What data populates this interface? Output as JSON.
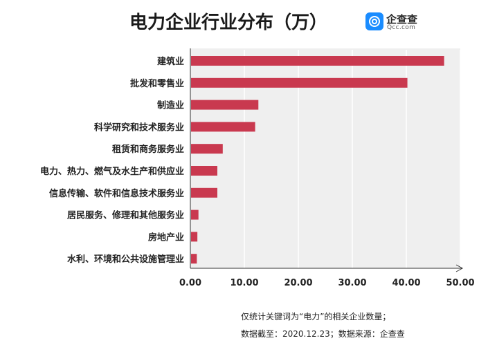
{
  "title": "电力企业行业分布（万）",
  "logo": {
    "name": "企查查",
    "sub": "Qcc.com"
  },
  "chart_data": {
    "type": "bar",
    "orientation": "horizontal",
    "title": "电力企业行业分布（万）",
    "categories": [
      "建筑业",
      "批发和零售业",
      "制造业",
      "科学研究和技术服务业",
      "租赁和商务服务业",
      "电力、热力、燃气及水生产和供应业",
      "信息传输、软件和信息技术服务业",
      "居民服务、修理和其他服务业",
      "房地产业",
      "水利、环境和公共设施管理业"
    ],
    "values": [
      47.0,
      40.2,
      12.6,
      12.0,
      6.0,
      5.0,
      5.0,
      1.5,
      1.3,
      1.2
    ],
    "xlim": [
      0,
      50
    ],
    "xticks": [
      "0.00",
      "10.00",
      "20.00",
      "30.00",
      "40.00",
      "50.00"
    ],
    "grid": true,
    "bar_color": "#c9394f"
  },
  "notes": {
    "line1": "仅统计关键词为“电力”的相关企业数量；",
    "line2": "数据截至：2020.12.23；数据来源：企查查"
  }
}
